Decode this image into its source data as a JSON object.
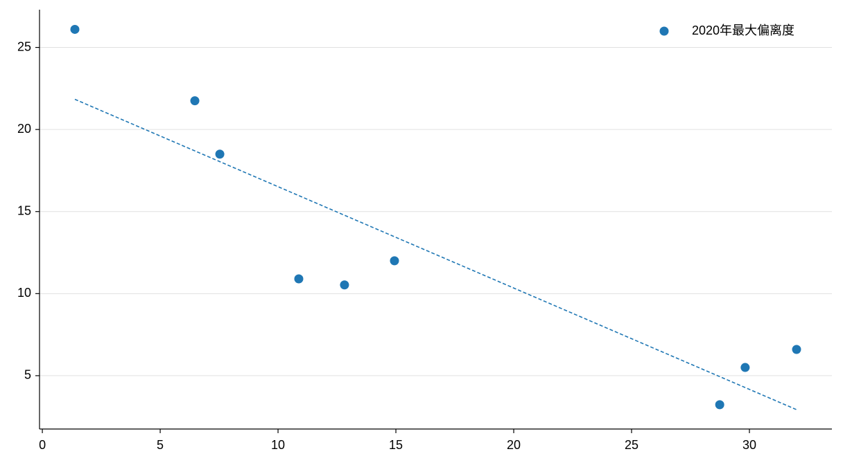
{
  "chart_data": {
    "type": "scatter",
    "series": [
      {
        "name": "2020年最大偏离度",
        "color": "#1f77b4",
        "x": [
          1.38,
          6.47,
          7.53,
          10.88,
          12.82,
          14.94,
          28.74,
          29.82,
          32.0
        ],
        "values": [
          26.1,
          21.75,
          18.5,
          10.9,
          10.53,
          12.0,
          3.23,
          5.5,
          6.6
        ]
      }
    ],
    "trendline": {
      "x": [
        1.38,
        32.0
      ],
      "values": [
        21.84,
        2.93
      ],
      "color": "#1f77b4",
      "style": "dashed"
    },
    "xlim": [
      -0.12,
      33.5
    ],
    "xticks": [
      0,
      5,
      10,
      15,
      20,
      25,
      30
    ],
    "ylim": [
      1.75,
      27.3
    ],
    "yticks": [
      5,
      10,
      15,
      20,
      25
    ],
    "grid": "y",
    "legend": "upper right"
  }
}
